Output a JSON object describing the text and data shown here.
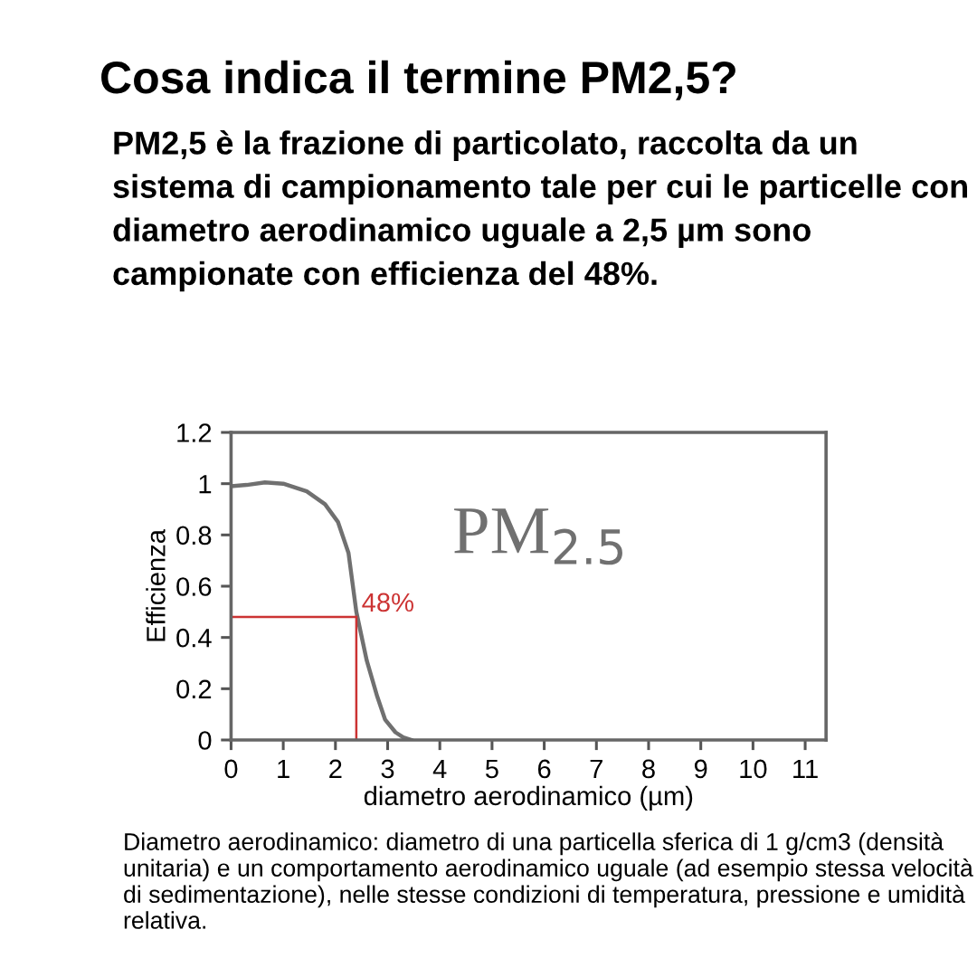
{
  "chart_data": {
    "type": "line",
    "title": "Cosa indica il termine PM2,5?",
    "subtitle": "PM2,5 è la frazione di particolato, raccolta da un sistema di campionamento tale per cui le particelle con diametro aerodinamico uguale a 2,5 µm sono campionate con efficienza del 48%.",
    "xlabel": "diametro aerodinamico (µm)",
    "ylabel": "Efficienza",
    "x": [
      0,
      0.3,
      0.65,
      1.0,
      1.45,
      1.8,
      2.05,
      2.25,
      2.4,
      2.6,
      2.8,
      2.95,
      3.15,
      3.3,
      3.45
    ],
    "series": [
      {
        "name": "PM$_{2.5}$",
        "color": "#707070",
        "values": [
          0.99,
          0.995,
          1.005,
          1.0,
          0.97,
          0.92,
          0.85,
          0.73,
          0.5,
          0.31,
          0.17,
          0.08,
          0.03,
          0.01,
          0.0
        ]
      }
    ],
    "xlim": [
      0,
      11.4
    ],
    "xticks": [
      0,
      1,
      2,
      3,
      4,
      5,
      6,
      7,
      8,
      9,
      10,
      11
    ],
    "ylim": [
      0,
      1.2
    ],
    "yticks": [
      0,
      0.2,
      0.4,
      0.6,
      0.8,
      1,
      1.2
    ],
    "ref_lines": [
      {
        "axis": "y",
        "value": 0.48,
        "label": "48%",
        "color": "#cc3333"
      },
      {
        "axis": "x",
        "value": 2.4,
        "color": "#cc3333"
      }
    ],
    "annotations": [
      "Diametro aerodinamico: diametro di una particella sferica di 1 g/cm3 (densità unitaria) e un comportamento aerodinamico uguale (ad esempio stessa velocità di sedimentazione), nelle stesse condizioni di temperatura, pressione e umidità relativa."
    ]
  }
}
